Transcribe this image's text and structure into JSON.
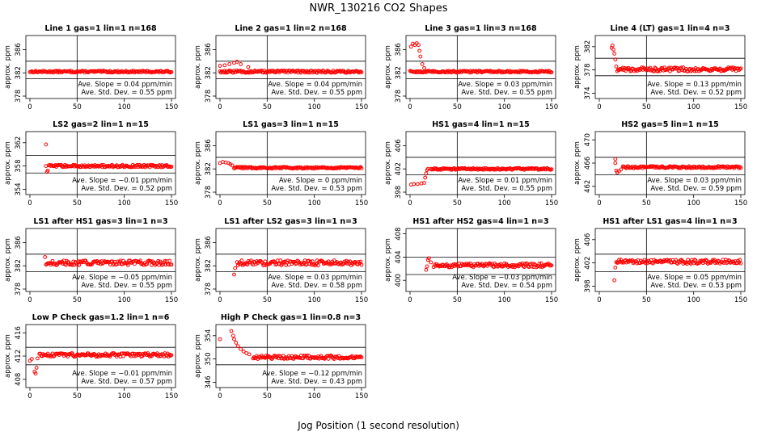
{
  "title": "NWR_130216  CO2 Shapes",
  "xlabel": "Jog Position (1 second resolution)",
  "ylabel": "approx. ppm",
  "slope_prefix": "Ave. Slope = ",
  "slope_unit": " ppm/min",
  "std_prefix": "Ave. Std. Dev. = ",
  "std_unit": " ppm",
  "x_ticks": [
    0,
    50,
    100,
    150
  ],
  "xlim": [
    0,
    150
  ],
  "vline_x": 50,
  "colors": {
    "points": "#ff0000",
    "axes": "#000000"
  },
  "chart_data": [
    {
      "type": "scatter",
      "title": "Line 1 gas=1 lin=1 n=168",
      "ylim": [
        378,
        388
      ],
      "yticks": [
        "378",
        "382",
        "386"
      ],
      "hlines": [
        384,
        381
      ],
      "level": 382.2,
      "start": 0,
      "noise": 0.15,
      "early": [],
      "slope": "0.04",
      "std": "0.55"
    },
    {
      "type": "scatter",
      "title": "Line 2 gas=1 lin=2 n=168",
      "ylim": [
        378,
        388
      ],
      "yticks": [
        "378",
        "382",
        "386"
      ],
      "hlines": [
        384,
        381
      ],
      "level": 382.2,
      "start": 0,
      "noise": 0.2,
      "early": [
        [
          0,
          383.2
        ],
        [
          5,
          383.3
        ],
        [
          10,
          383.5
        ],
        [
          15,
          383.7
        ],
        [
          18,
          383.9
        ],
        [
          22,
          383.5
        ],
        [
          30,
          383.0
        ]
      ],
      "slope": "0.04",
      "std": "0.55"
    },
    {
      "type": "scatter",
      "title": "Line 3 gas=1 lin=3 n=168",
      "ylim": [
        378,
        388
      ],
      "yticks": [
        "378",
        "382",
        "386"
      ],
      "hlines": [
        384,
        381
      ],
      "level": 382.2,
      "start": 0,
      "noise": 0.15,
      "early": [
        [
          1,
          386.5
        ],
        [
          3,
          387.0
        ],
        [
          5,
          386.8
        ],
        [
          7,
          387.1
        ],
        [
          9,
          386.8
        ],
        [
          10,
          385.8
        ],
        [
          11,
          384.8
        ],
        [
          13,
          383.5
        ],
        [
          15,
          382.8
        ]
      ],
      "slope": "0.03",
      "std": "0.55"
    },
    {
      "type": "scatter",
      "title": "Line 4 (LT) gas=1 lin=4 n=3",
      "ylim": [
        373.5,
        383.5
      ],
      "yticks": [
        "374",
        "378",
        "382"
      ],
      "hlines": [
        380,
        377
      ],
      "level": 378.1,
      "start": 20,
      "noise": 0.35,
      "early": [
        [
          13,
          381.8
        ],
        [
          14,
          382.2
        ],
        [
          15,
          381.5
        ],
        [
          16,
          380.8
        ],
        [
          17,
          379.8
        ],
        [
          18,
          378.6
        ],
        [
          19,
          377.8
        ]
      ],
      "slope": "0.13",
      "std": "0.52"
    },
    {
      "type": "scatter",
      "title": "LS2 gas=2 lin=1 n=15",
      "ylim": [
        353.5,
        363.5
      ],
      "yticks": [
        "354",
        "358",
        "362"
      ],
      "hlines": [
        359.8,
        356.8
      ],
      "level": 358.0,
      "start": 20,
      "noise": 0.2,
      "early": [
        [
          17,
          361.7
        ],
        [
          17,
          358.0
        ],
        [
          18,
          357.0
        ],
        [
          19,
          357.2
        ]
      ],
      "slope": "−0.01",
      "std": "0.52"
    },
    {
      "type": "scatter",
      "title": "LS1 gas=3 lin=1 n=15",
      "ylim": [
        378,
        388
      ],
      "yticks": [
        "378",
        "382",
        "386"
      ],
      "hlines": [
        384,
        381
      ],
      "level": 382.2,
      "start": 15,
      "noise": 0.15,
      "early": [
        [
          0,
          383.0
        ],
        [
          3,
          383.2
        ],
        [
          6,
          383.1
        ],
        [
          9,
          383.0
        ],
        [
          11,
          382.8
        ],
        [
          13,
          382.6
        ]
      ],
      "slope": "0",
      "std": "0.53"
    },
    {
      "type": "scatter",
      "title": "HS1 gas=4 lin=1 n=15",
      "ylim": [
        398,
        408
      ],
      "yticks": [
        "398",
        "402",
        "406"
      ],
      "hlines": [
        404,
        401
      ],
      "level": 402.0,
      "start": 22,
      "noise": 0.15,
      "early": [
        [
          1,
          399.3
        ],
        [
          4,
          399.4
        ],
        [
          8,
          399.4
        ],
        [
          12,
          399.5
        ],
        [
          15,
          399.6
        ],
        [
          16,
          400.5
        ],
        [
          17,
          401.2
        ],
        [
          18,
          401.8
        ],
        [
          19,
          402.0
        ]
      ],
      "slope": "0.01",
      "std": "0.55"
    },
    {
      "type": "scatter",
      "title": "HS2 gas=5 lin=1 n=15",
      "ylim": [
        461,
        471
      ],
      "yticks": [
        "462",
        "466",
        "470"
      ],
      "hlines": [
        467,
        464
      ],
      "level": 465.3,
      "start": 25,
      "noise": 0.18,
      "early": [
        [
          17,
          466.7
        ],
        [
          17,
          466.0
        ],
        [
          18,
          464.7
        ],
        [
          19,
          464.4
        ],
        [
          21,
          464.6
        ],
        [
          23,
          464.9
        ]
      ],
      "slope": "0.03",
      "std": "0.59"
    },
    {
      "type": "scatter",
      "title": "LS1 after HS1 gas=3 lin=1 n=3",
      "ylim": [
        378,
        388
      ],
      "yticks": [
        "378",
        "382",
        "386"
      ],
      "hlines": [
        384,
        381
      ],
      "level": 382.5,
      "start": 18,
      "noise": 0.4,
      "early": [
        [
          16,
          383.5
        ],
        [
          17,
          382.2
        ]
      ],
      "slope": "−0.05",
      "std": "0.55"
    },
    {
      "type": "scatter",
      "title": "LS1 after LS2 gas=3 lin=1 n=3",
      "ylim": [
        378,
        388
      ],
      "yticks": [
        "378",
        "382",
        "386"
      ],
      "hlines": [
        384,
        381
      ],
      "level": 382.5,
      "start": 18,
      "noise": 0.45,
      "early": [
        [
          15,
          380.5
        ],
        [
          16,
          381.6
        ]
      ],
      "slope": "0.03",
      "std": "0.58"
    },
    {
      "type": "scatter",
      "title": "HS1 after HS2 gas=4 lin=1 n=3",
      "ylim": [
        398.5,
        408.5
      ],
      "yticks": [
        "400",
        "404",
        "408"
      ],
      "hlines": [
        404,
        401
      ],
      "level": 402.6,
      "start": 25,
      "noise": 0.35,
      "early": [
        [
          17,
          401.8
        ],
        [
          18,
          402.4
        ],
        [
          19,
          403.5
        ],
        [
          20,
          403.8
        ],
        [
          22,
          403.1
        ]
      ],
      "slope": "−0.03",
      "std": "0.54"
    },
    {
      "type": "scatter",
      "title": "HS1 after LS1 gas=4 lin=1 n=3",
      "ylim": [
        397.5,
        407.5
      ],
      "yticks": [
        "398",
        "402",
        "406"
      ],
      "hlines": [
        403.5,
        400.5
      ],
      "level": 402.2,
      "start": 18,
      "noise": 0.35,
      "early": [
        [
          16,
          399.0
        ],
        [
          17,
          401.2
        ]
      ],
      "slope": "0.05",
      "std": "0.53"
    },
    {
      "type": "scatter",
      "title": "Low P Check gas=1.2 lin=1 n=6",
      "ylim": [
        407,
        417
      ],
      "yticks": [
        "408",
        "412",
        "416"
      ],
      "hlines": [
        413.5,
        410.5
      ],
      "level": 412.2,
      "start": 10,
      "noise": 0.3,
      "early": [
        [
          0,
          411.2
        ],
        [
          2,
          411.5
        ],
        [
          5,
          409.3
        ],
        [
          6,
          409.0
        ],
        [
          7,
          410.0
        ],
        [
          8,
          411.6
        ]
      ],
      "slope": "−0.01",
      "std": "0.57"
    },
    {
      "type": "scatter",
      "title": "High P Check gas=1 lin=0.8 n=3",
      "ylim": [
        345.5,
        355.5
      ],
      "yticks": [
        "346",
        "350",
        "354"
      ],
      "hlines": [
        352,
        349
      ],
      "level": 350.3,
      "start": 35,
      "noise": 0.3,
      "early": [
        [
          0,
          353.4
        ],
        [
          12,
          354.8
        ],
        [
          14,
          354.0
        ],
        [
          15,
          353.4
        ],
        [
          17,
          352.8
        ],
        [
          19,
          352.2
        ],
        [
          22,
          351.7
        ],
        [
          25,
          351.3
        ],
        [
          28,
          351.0
        ],
        [
          31,
          350.8
        ]
      ],
      "slope": "−0.12",
      "std": "0.43"
    }
  ]
}
